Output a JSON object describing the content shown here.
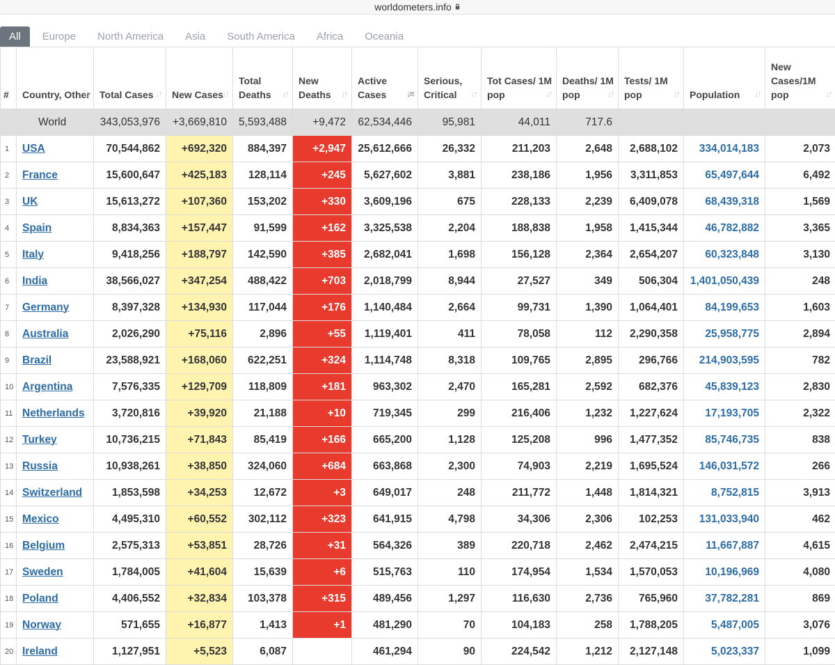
{
  "url": {
    "host": "worldometers.info"
  },
  "tabs": [
    "All",
    "Europe",
    "North America",
    "Asia",
    "South America",
    "Africa",
    "Oceania"
  ],
  "headers": {
    "num": "#",
    "country": "Country, Other",
    "total_cases": "Total Cases",
    "new_cases": "New Cases",
    "total_deaths": "Total Deaths",
    "new_deaths": "New Deaths",
    "active_cases": "Active Cases",
    "serious": "Serious, Critical",
    "cases_per_m": "Tot Cases/ 1M pop",
    "deaths_per_m": "Deaths/ 1M pop",
    "tests_per_m": "Tests/ 1M pop",
    "population": "Population",
    "new_cases_per_m": "New Cases/1M pop"
  },
  "world": {
    "name": "World",
    "total_cases": "343,053,976",
    "new_cases": "+3,669,810",
    "total_deaths": "5,593,488",
    "new_deaths": "+9,472",
    "active_cases": "62,534,446",
    "serious": "95,981",
    "cases_per_m": "44,011",
    "deaths_per_m": "717.6",
    "tests_per_m": "",
    "population": "",
    "new_cases_per_m": ""
  },
  "rows": [
    {
      "idx": "1",
      "country": "USA",
      "total_cases": "70,544,862",
      "new_cases": "+692,320",
      "total_deaths": "884,397",
      "new_deaths": "+2,947",
      "active_cases": "25,612,666",
      "serious": "26,332",
      "cases_per_m": "211,203",
      "deaths_per_m": "2,648",
      "tests_per_m": "2,688,102",
      "population": "334,014,183",
      "new_cases_per_m": "2,073"
    },
    {
      "idx": "2",
      "country": "France",
      "total_cases": "15,600,647",
      "new_cases": "+425,183",
      "total_deaths": "128,114",
      "new_deaths": "+245",
      "active_cases": "5,627,602",
      "serious": "3,881",
      "cases_per_m": "238,186",
      "deaths_per_m": "1,956",
      "tests_per_m": "3,311,853",
      "population": "65,497,644",
      "new_cases_per_m": "6,492"
    },
    {
      "idx": "3",
      "country": "UK",
      "total_cases": "15,613,272",
      "new_cases": "+107,360",
      "total_deaths": "153,202",
      "new_deaths": "+330",
      "active_cases": "3,609,196",
      "serious": "675",
      "cases_per_m": "228,133",
      "deaths_per_m": "2,239",
      "tests_per_m": "6,409,078",
      "population": "68,439,318",
      "new_cases_per_m": "1,569"
    },
    {
      "idx": "4",
      "country": "Spain",
      "total_cases": "8,834,363",
      "new_cases": "+157,447",
      "total_deaths": "91,599",
      "new_deaths": "+162",
      "active_cases": "3,325,538",
      "serious": "2,204",
      "cases_per_m": "188,838",
      "deaths_per_m": "1,958",
      "tests_per_m": "1,415,344",
      "population": "46,782,882",
      "new_cases_per_m": "3,365"
    },
    {
      "idx": "5",
      "country": "Italy",
      "total_cases": "9,418,256",
      "new_cases": "+188,797",
      "total_deaths": "142,590",
      "new_deaths": "+385",
      "active_cases": "2,682,041",
      "serious": "1,698",
      "cases_per_m": "156,128",
      "deaths_per_m": "2,364",
      "tests_per_m": "2,654,207",
      "population": "60,323,848",
      "new_cases_per_m": "3,130"
    },
    {
      "idx": "6",
      "country": "India",
      "total_cases": "38,566,027",
      "new_cases": "+347,254",
      "total_deaths": "488,422",
      "new_deaths": "+703",
      "active_cases": "2,018,799",
      "serious": "8,944",
      "cases_per_m": "27,527",
      "deaths_per_m": "349",
      "tests_per_m": "506,304",
      "population": "1,401,050,439",
      "new_cases_per_m": "248"
    },
    {
      "idx": "7",
      "country": "Germany",
      "total_cases": "8,397,328",
      "new_cases": "+134,930",
      "total_deaths": "117,044",
      "new_deaths": "+176",
      "active_cases": "1,140,484",
      "serious": "2,664",
      "cases_per_m": "99,731",
      "deaths_per_m": "1,390",
      "tests_per_m": "1,064,401",
      "population": "84,199,653",
      "new_cases_per_m": "1,603"
    },
    {
      "idx": "8",
      "country": "Australia",
      "total_cases": "2,026,290",
      "new_cases": "+75,116",
      "total_deaths": "2,896",
      "new_deaths": "+55",
      "active_cases": "1,119,401",
      "serious": "411",
      "cases_per_m": "78,058",
      "deaths_per_m": "112",
      "tests_per_m": "2,290,358",
      "population": "25,958,775",
      "new_cases_per_m": "2,894"
    },
    {
      "idx": "9",
      "country": "Brazil",
      "total_cases": "23,588,921",
      "new_cases": "+168,060",
      "total_deaths": "622,251",
      "new_deaths": "+324",
      "active_cases": "1,114,748",
      "serious": "8,318",
      "cases_per_m": "109,765",
      "deaths_per_m": "2,895",
      "tests_per_m": "296,766",
      "population": "214,903,595",
      "new_cases_per_m": "782"
    },
    {
      "idx": "10",
      "country": "Argentina",
      "total_cases": "7,576,335",
      "new_cases": "+129,709",
      "total_deaths": "118,809",
      "new_deaths": "+181",
      "active_cases": "963,302",
      "serious": "2,470",
      "cases_per_m": "165,281",
      "deaths_per_m": "2,592",
      "tests_per_m": "682,376",
      "population": "45,839,123",
      "new_cases_per_m": "2,830"
    },
    {
      "idx": "11",
      "country": "Netherlands",
      "total_cases": "3,720,816",
      "new_cases": "+39,920",
      "total_deaths": "21,188",
      "new_deaths": "+10",
      "active_cases": "719,345",
      "serious": "299",
      "cases_per_m": "216,406",
      "deaths_per_m": "1,232",
      "tests_per_m": "1,227,624",
      "population": "17,193,705",
      "new_cases_per_m": "2,322"
    },
    {
      "idx": "12",
      "country": "Turkey",
      "total_cases": "10,736,215",
      "new_cases": "+71,843",
      "total_deaths": "85,419",
      "new_deaths": "+166",
      "active_cases": "665,200",
      "serious": "1,128",
      "cases_per_m": "125,208",
      "deaths_per_m": "996",
      "tests_per_m": "1,477,352",
      "population": "85,746,735",
      "new_cases_per_m": "838"
    },
    {
      "idx": "13",
      "country": "Russia",
      "total_cases": "10,938,261",
      "new_cases": "+38,850",
      "total_deaths": "324,060",
      "new_deaths": "+684",
      "active_cases": "663,868",
      "serious": "2,300",
      "cases_per_m": "74,903",
      "deaths_per_m": "2,219",
      "tests_per_m": "1,695,524",
      "population": "146,031,572",
      "new_cases_per_m": "266"
    },
    {
      "idx": "14",
      "country": "Switzerland",
      "total_cases": "1,853,598",
      "new_cases": "+34,253",
      "total_deaths": "12,672",
      "new_deaths": "+3",
      "active_cases": "649,017",
      "serious": "248",
      "cases_per_m": "211,772",
      "deaths_per_m": "1,448",
      "tests_per_m": "1,814,321",
      "population": "8,752,815",
      "new_cases_per_m": "3,913"
    },
    {
      "idx": "15",
      "country": "Mexico",
      "total_cases": "4,495,310",
      "new_cases": "+60,552",
      "total_deaths": "302,112",
      "new_deaths": "+323",
      "active_cases": "641,915",
      "serious": "4,798",
      "cases_per_m": "34,306",
      "deaths_per_m": "2,306",
      "tests_per_m": "102,253",
      "population": "131,033,940",
      "new_cases_per_m": "462"
    },
    {
      "idx": "16",
      "country": "Belgium",
      "total_cases": "2,575,313",
      "new_cases": "+53,851",
      "total_deaths": "28,726",
      "new_deaths": "+31",
      "active_cases": "564,326",
      "serious": "389",
      "cases_per_m": "220,718",
      "deaths_per_m": "2,462",
      "tests_per_m": "2,474,215",
      "population": "11,667,887",
      "new_cases_per_m": "4,615"
    },
    {
      "idx": "17",
      "country": "Sweden",
      "total_cases": "1,784,005",
      "new_cases": "+41,604",
      "total_deaths": "15,639",
      "new_deaths": "+6",
      "active_cases": "515,763",
      "serious": "110",
      "cases_per_m": "174,954",
      "deaths_per_m": "1,534",
      "tests_per_m": "1,570,053",
      "population": "10,196,969",
      "new_cases_per_m": "4,080"
    },
    {
      "idx": "18",
      "country": "Poland",
      "total_cases": "4,406,552",
      "new_cases": "+32,834",
      "total_deaths": "103,378",
      "new_deaths": "+315",
      "active_cases": "489,456",
      "serious": "1,297",
      "cases_per_m": "116,630",
      "deaths_per_m": "2,736",
      "tests_per_m": "765,960",
      "population": "37,782,281",
      "new_cases_per_m": "869"
    },
    {
      "idx": "19",
      "country": "Norway",
      "total_cases": "571,655",
      "new_cases": "+16,877",
      "total_deaths": "1,413",
      "new_deaths": "+1",
      "active_cases": "481,290",
      "serious": "70",
      "cases_per_m": "104,183",
      "deaths_per_m": "258",
      "tests_per_m": "1,788,205",
      "population": "5,487,005",
      "new_cases_per_m": "3,076"
    },
    {
      "idx": "20",
      "country": "Ireland",
      "total_cases": "1,127,951",
      "new_cases": "+5,523",
      "total_deaths": "6,087",
      "new_deaths": "",
      "active_cases": "461,294",
      "serious": "90",
      "cases_per_m": "224,542",
      "deaths_per_m": "1,212",
      "tests_per_m": "2,127,148",
      "population": "5,023,337",
      "new_cases_per_m": "1,099"
    }
  ],
  "colors": {
    "new_cases_bg": "#fff3b0",
    "new_deaths_bg": "#e83a2d",
    "world_row_bg": "#dfdfe0",
    "link": "#2d6ca5",
    "active_tab_bg": "#6c757d"
  }
}
